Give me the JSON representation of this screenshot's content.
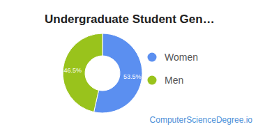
{
  "chart_data": {
    "type": "donut",
    "title": "Undergraduate Student Gen…",
    "categories": [
      "Women",
      "Men"
    ],
    "values": [
      53.5,
      46.5
    ],
    "value_labels": [
      "53.5%",
      "46.5%"
    ],
    "colors": [
      "#5b8ff0",
      "#99c31c"
    ],
    "data_labels": true,
    "legend": "right",
    "source": "ComputerScienceDegree.io"
  }
}
